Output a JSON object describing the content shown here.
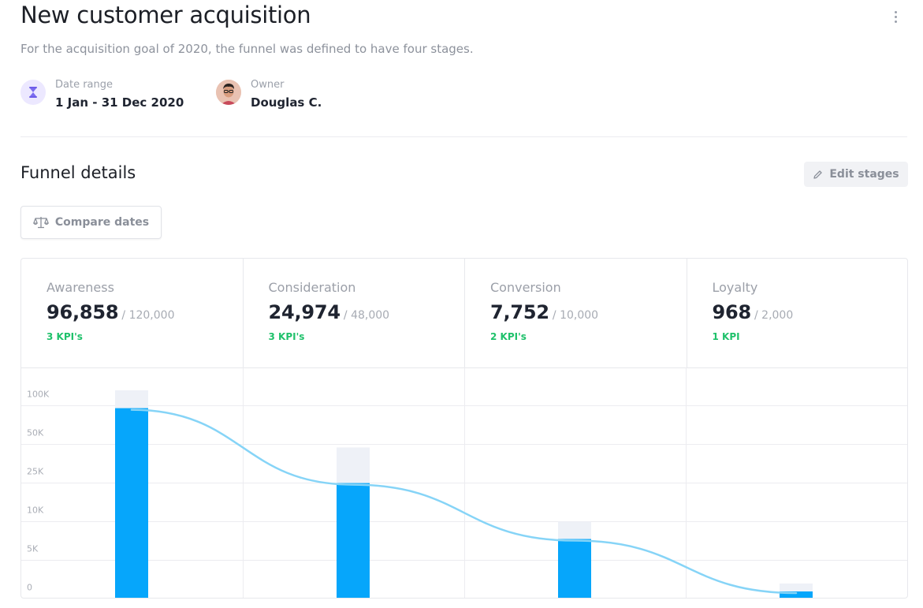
{
  "header": {
    "title": "New customer acquisition",
    "subtitle": "For the acquisition goal of 2020, the funnel was defined to have four stages.",
    "more_icon": "vertical-ellipsis-icon"
  },
  "meta": {
    "date_range_label": "Date range",
    "date_range_value": "1 Jan - 31 Dec 2020",
    "date_range_icon": "hourglass-icon",
    "owner_label": "Owner",
    "owner_value": "Douglas C.",
    "owner_icon": "avatar"
  },
  "funnel": {
    "title": "Funnel details",
    "edit_label": "Edit stages",
    "edit_icon": "pencil-icon",
    "compare_label": "Compare dates",
    "compare_icon": "scale-icon"
  },
  "stages": [
    {
      "name": "Awareness",
      "value": "96,858",
      "target": "/ 120,000",
      "kpis": "3 KPI's"
    },
    {
      "name": "Consideration",
      "value": "24,974",
      "target": "/ 48,000",
      "kpis": "3 KPI's"
    },
    {
      "name": "Conversion",
      "value": "7,752",
      "target": "/ 10,000",
      "kpis": "2 KPI's"
    },
    {
      "name": "Loyalty",
      "value": "968",
      "target": "/ 2,000",
      "kpis": "1 KPI"
    }
  ],
  "colors": {
    "bar": "#06a6fb",
    "target_bar": "#eef1f7",
    "line": "#86d4f7",
    "kpi": "#1fc16b",
    "grid": "#ececf0"
  },
  "chart_data": {
    "type": "bar",
    "categories": [
      "Awareness",
      "Consideration",
      "Conversion",
      "Loyalty"
    ],
    "y_tick_labels": [
      "100K",
      "50K",
      "25K",
      "10K",
      "5K",
      "0"
    ],
    "y_ticks": [
      100000,
      50000,
      25000,
      10000,
      5000,
      0
    ],
    "y_scale": "piecewise",
    "series": [
      {
        "values": [
          96858,
          24974,
          7752,
          968
        ]
      },
      {
        "values": [
          120000,
          48000,
          10000,
          2000
        ]
      }
    ],
    "trend_line": true,
    "grid": true
  }
}
